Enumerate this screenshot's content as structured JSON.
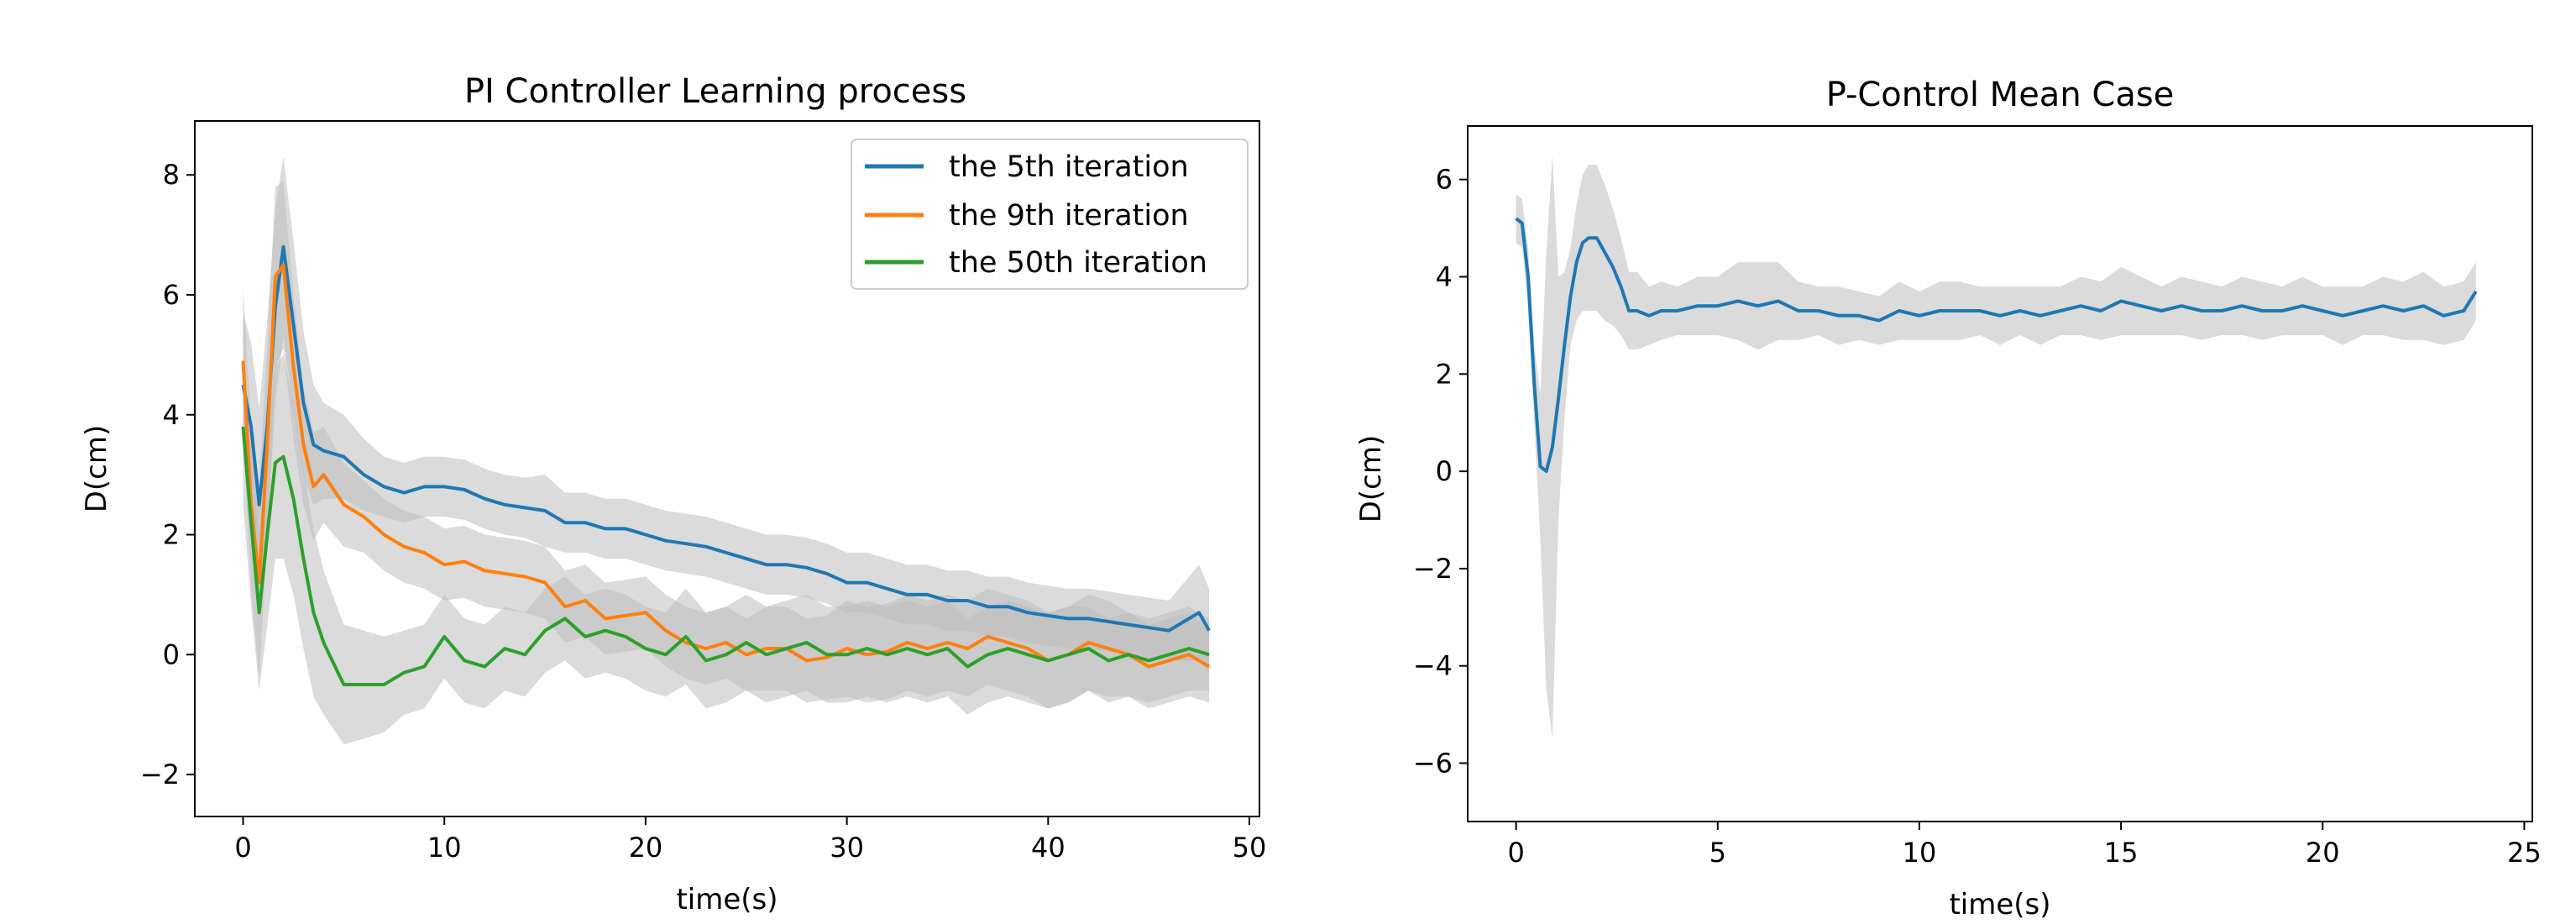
{
  "chart_data": [
    {
      "type": "line",
      "title": "PI Controller Learning process",
      "xlabel": "time(s)",
      "ylabel": "D(cm)",
      "xlim": [
        -2.4,
        50.5
      ],
      "ylim": [
        -2.7,
        8.9
      ],
      "xticks": [
        0,
        10,
        20,
        30,
        40,
        50
      ],
      "yticks": [
        -2,
        0,
        2,
        4,
        6,
        8
      ],
      "ytick_labels": [
        "−2",
        "0",
        "2",
        "4",
        "6",
        "8"
      ],
      "grid": false,
      "legend": "top-right",
      "series": [
        {
          "name": "the 5th iteration",
          "color": "#1f77b4",
          "x": [
            0,
            0.4,
            0.8,
            1.2,
            1.6,
            2,
            2.5,
            3,
            3.5,
            4,
            5,
            6,
            7,
            8,
            9,
            10,
            11,
            12,
            13,
            14,
            15,
            16,
            17,
            18,
            19,
            20,
            21,
            22,
            23,
            24,
            25,
            26,
            27,
            28,
            29,
            30,
            31,
            32,
            33,
            34,
            35,
            36,
            37,
            38,
            39,
            40,
            41,
            42,
            43,
            44,
            45,
            46,
            47,
            47.5,
            48
          ],
          "y": [
            4.5,
            3.8,
            2.5,
            3.8,
            5.8,
            6.8,
            5.5,
            4.2,
            3.5,
            3.4,
            3.3,
            3.0,
            2.8,
            2.7,
            2.8,
            2.8,
            2.75,
            2.6,
            2.5,
            2.45,
            2.4,
            2.2,
            2.2,
            2.1,
            2.1,
            2.0,
            1.9,
            1.85,
            1.8,
            1.7,
            1.6,
            1.5,
            1.5,
            1.45,
            1.35,
            1.2,
            1.2,
            1.1,
            1.0,
            1.0,
            0.9,
            0.9,
            0.8,
            0.8,
            0.7,
            0.65,
            0.6,
            0.6,
            0.55,
            0.5,
            0.45,
            0.4,
            0.6,
            0.7,
            0.4
          ],
          "band_width": [
            1.2,
            1.4,
            1.6,
            1.8,
            1.6,
            1.5,
            1.4,
            1.2,
            1.0,
            0.8,
            0.7,
            0.6,
            0.5,
            0.5,
            0.5,
            0.5,
            0.5,
            0.5,
            0.5,
            0.5,
            0.6,
            0.5,
            0.5,
            0.5,
            0.5,
            0.5,
            0.5,
            0.5,
            0.5,
            0.5,
            0.5,
            0.5,
            0.5,
            0.5,
            0.5,
            0.5,
            0.5,
            0.5,
            0.5,
            0.5,
            0.5,
            0.5,
            0.5,
            0.5,
            0.5,
            0.5,
            0.5,
            0.5,
            0.5,
            0.5,
            0.5,
            0.5,
            0.7,
            0.8,
            0.7
          ]
        },
        {
          "name": "the 9th iteration",
          "color": "#ff7f0e",
          "x": [
            0,
            0.4,
            0.8,
            1.2,
            1.6,
            2,
            2.5,
            3,
            3.5,
            4,
            5,
            6,
            7,
            8,
            9,
            10,
            11,
            12,
            13,
            14,
            15,
            16,
            17,
            18,
            19,
            20,
            21,
            22,
            23,
            24,
            25,
            26,
            27,
            28,
            29,
            30,
            31,
            32,
            33,
            34,
            35,
            36,
            37,
            38,
            39,
            40,
            41,
            42,
            43,
            44,
            45,
            46,
            47,
            48
          ],
          "y": [
            4.9,
            2.5,
            1.2,
            3.5,
            6.3,
            6.5,
            4.8,
            3.5,
            2.8,
            3.0,
            2.5,
            2.3,
            2.0,
            1.8,
            1.7,
            1.5,
            1.55,
            1.4,
            1.35,
            1.3,
            1.2,
            0.8,
            0.9,
            0.6,
            0.65,
            0.7,
            0.4,
            0.2,
            0.1,
            0.2,
            0.0,
            0.1,
            0.1,
            -0.1,
            -0.05,
            0.1,
            0.0,
            0.05,
            0.2,
            0.1,
            0.2,
            0.1,
            0.3,
            0.2,
            0.1,
            -0.1,
            0.0,
            0.2,
            0.1,
            0.0,
            -0.2,
            -0.1,
            0.0,
            -0.2
          ],
          "band_width": [
            1.2,
            1.4,
            1.6,
            1.6,
            1.5,
            1.4,
            1.2,
            1.0,
            0.9,
            0.8,
            0.7,
            0.6,
            0.6,
            0.6,
            0.6,
            0.6,
            0.6,
            0.6,
            0.6,
            0.6,
            0.6,
            0.6,
            0.6,
            0.6,
            0.6,
            0.6,
            0.6,
            0.6,
            0.6,
            0.6,
            0.6,
            0.7,
            0.7,
            0.7,
            0.7,
            0.8,
            0.8,
            0.8,
            0.8,
            0.8,
            0.8,
            0.8,
            0.8,
            0.8,
            0.8,
            0.8,
            0.8,
            0.8,
            0.8,
            0.7,
            0.7,
            0.7,
            0.7,
            0.6
          ]
        },
        {
          "name": "the 50th iteration",
          "color": "#2ca02c",
          "x": [
            0,
            0.4,
            0.8,
            1.2,
            1.6,
            2,
            2.5,
            3,
            3.5,
            4,
            5,
            6,
            7,
            8,
            9,
            10,
            11,
            12,
            13,
            14,
            15,
            16,
            17,
            18,
            19,
            20,
            21,
            22,
            23,
            24,
            25,
            26,
            27,
            28,
            29,
            30,
            31,
            32,
            33,
            34,
            35,
            36,
            37,
            38,
            39,
            40,
            41,
            42,
            43,
            44,
            45,
            46,
            47,
            48
          ],
          "y": [
            3.8,
            2.2,
            0.7,
            2.0,
            3.2,
            3.3,
            2.6,
            1.6,
            0.7,
            0.2,
            -0.5,
            -0.5,
            -0.5,
            -0.3,
            -0.2,
            0.3,
            -0.1,
            -0.2,
            0.1,
            0.0,
            0.4,
            0.6,
            0.3,
            0.4,
            0.3,
            0.1,
            0.0,
            0.3,
            -0.1,
            0.0,
            0.2,
            0.0,
            0.1,
            0.2,
            0.0,
            0.0,
            0.1,
            0.0,
            0.1,
            0.0,
            0.1,
            -0.2,
            0.0,
            0.1,
            0.0,
            -0.1,
            0.0,
            0.1,
            -0.1,
            0.0,
            -0.1,
            0.0,
            0.1,
            0.0
          ],
          "band_width": [
            1.3,
            1.4,
            1.3,
            1.5,
            1.6,
            1.7,
            1.6,
            1.5,
            1.4,
            1.2,
            1.0,
            0.9,
            0.8,
            0.7,
            0.7,
            0.7,
            0.7,
            0.7,
            0.7,
            0.7,
            0.7,
            0.7,
            0.7,
            0.7,
            0.7,
            0.7,
            0.7,
            0.8,
            0.8,
            0.8,
            0.8,
            0.8,
            0.8,
            0.8,
            0.8,
            0.8,
            0.8,
            0.8,
            0.8,
            0.8,
            0.8,
            0.8,
            0.8,
            0.8,
            0.8,
            0.8,
            0.8,
            0.7,
            0.7,
            0.7,
            0.7,
            0.7,
            0.7,
            0.6
          ]
        }
      ],
      "band_color": "#bdbdbd"
    },
    {
      "type": "line",
      "title": "P-Control Mean Case",
      "xlabel": "time(s)",
      "ylabel": "D(cm)",
      "xlim": [
        -1.2,
        25.2
      ],
      "ylim": [
        -7.2,
        7.1
      ],
      "xticks": [
        0,
        5,
        10,
        15,
        20,
        25
      ],
      "yticks": [
        -6,
        -4,
        -2,
        0,
        2,
        4,
        6
      ],
      "ytick_labels": [
        "−6",
        "−4",
        "−2",
        "0",
        "2",
        "4",
        "6"
      ],
      "grid": false,
      "legend": "none",
      "series": [
        {
          "color": "#1f77b4",
          "x": [
            0,
            0.15,
            0.3,
            0.45,
            0.6,
            0.75,
            0.9,
            1.05,
            1.2,
            1.35,
            1.5,
            1.65,
            1.8,
            2.0,
            2.2,
            2.4,
            2.6,
            2.8,
            3.0,
            3.3,
            3.6,
            4,
            4.5,
            5,
            5.5,
            6,
            6.5,
            7,
            7.5,
            8,
            8.5,
            9,
            9.5,
            10,
            10.5,
            11,
            11.5,
            12,
            12.5,
            13,
            13.5,
            14,
            14.5,
            15,
            15.5,
            16,
            16.5,
            17,
            17.5,
            18,
            18.5,
            19,
            19.5,
            20,
            20.5,
            21,
            21.5,
            22,
            22.5,
            23,
            23.5,
            23.8
          ],
          "y": [
            5.2,
            5.1,
            4.0,
            1.8,
            0.1,
            0.0,
            0.5,
            1.5,
            2.6,
            3.6,
            4.3,
            4.7,
            4.8,
            4.8,
            4.5,
            4.2,
            3.8,
            3.3,
            3.3,
            3.2,
            3.3,
            3.3,
            3.4,
            3.4,
            3.5,
            3.4,
            3.5,
            3.3,
            3.3,
            3.2,
            3.2,
            3.1,
            3.3,
            3.2,
            3.3,
            3.3,
            3.3,
            3.2,
            3.3,
            3.2,
            3.3,
            3.4,
            3.3,
            3.5,
            3.4,
            3.3,
            3.4,
            3.3,
            3.3,
            3.4,
            3.3,
            3.3,
            3.4,
            3.3,
            3.2,
            3.3,
            3.4,
            3.3,
            3.4,
            3.2,
            3.3,
            3.7
          ],
          "band_width": [
            0.5,
            0.5,
            0.6,
            0.8,
            1.5,
            4.5,
            6.0,
            2.5,
            1.5,
            1.0,
            1.2,
            1.4,
            1.5,
            1.5,
            1.4,
            1.2,
            1.0,
            0.8,
            0.8,
            0.6,
            0.6,
            0.5,
            0.6,
            0.6,
            0.8,
            0.9,
            0.8,
            0.6,
            0.5,
            0.6,
            0.5,
            0.5,
            0.6,
            0.5,
            0.6,
            0.6,
            0.5,
            0.6,
            0.5,
            0.6,
            0.5,
            0.6,
            0.6,
            0.7,
            0.6,
            0.5,
            0.6,
            0.6,
            0.5,
            0.6,
            0.6,
            0.5,
            0.6,
            0.5,
            0.6,
            0.5,
            0.6,
            0.6,
            0.7,
            0.6,
            0.6,
            0.6
          ]
        }
      ],
      "band_color": "#bdbdbd"
    }
  ]
}
